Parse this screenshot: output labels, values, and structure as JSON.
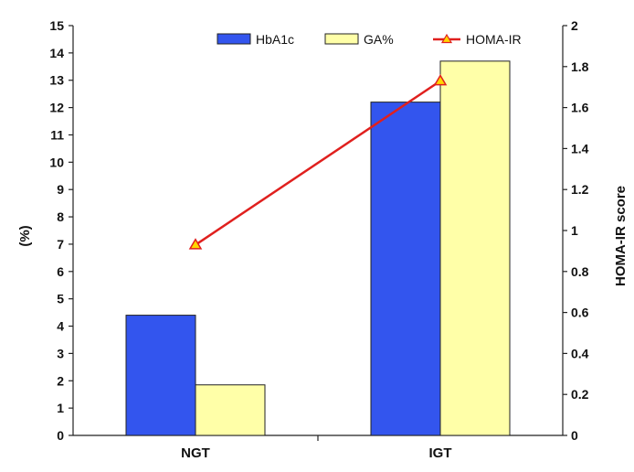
{
  "chart_data": {
    "type": "bar",
    "categories": [
      "NGT",
      "IGT"
    ],
    "series": [
      {
        "name": "HbA1c",
        "type": "bar",
        "axis": "left",
        "values": [
          4.4,
          12.2
        ],
        "color": "#3355EE"
      },
      {
        "name": "GA%",
        "type": "bar",
        "axis": "left",
        "values": [
          1.85,
          13.7
        ],
        "color": "#FFFFA8"
      },
      {
        "name": "HOMA-IR",
        "type": "line",
        "axis": "right",
        "values": [
          0.93,
          1.73
        ],
        "color": "#E0201E",
        "marker": "triangle",
        "marker_color": "#FFD700"
      }
    ],
    "title": "",
    "xlabel": "",
    "ylabel": "(%)",
    "y2label": "HOMA-IR score",
    "ylim": [
      0,
      15
    ],
    "y2lim": [
      0,
      2
    ],
    "yticks": [
      "0",
      "1",
      "2",
      "3",
      "4",
      "5",
      "6",
      "7",
      "8",
      "9",
      "10",
      "11",
      "12",
      "13",
      "14",
      "15"
    ],
    "y2ticks": [
      "0",
      "0.2",
      "0.4",
      "0.6",
      "0.8",
      "1",
      "1.2",
      "1.4",
      "1.6",
      "1.8",
      "2"
    ],
    "grid": false,
    "legend_position": "top"
  }
}
